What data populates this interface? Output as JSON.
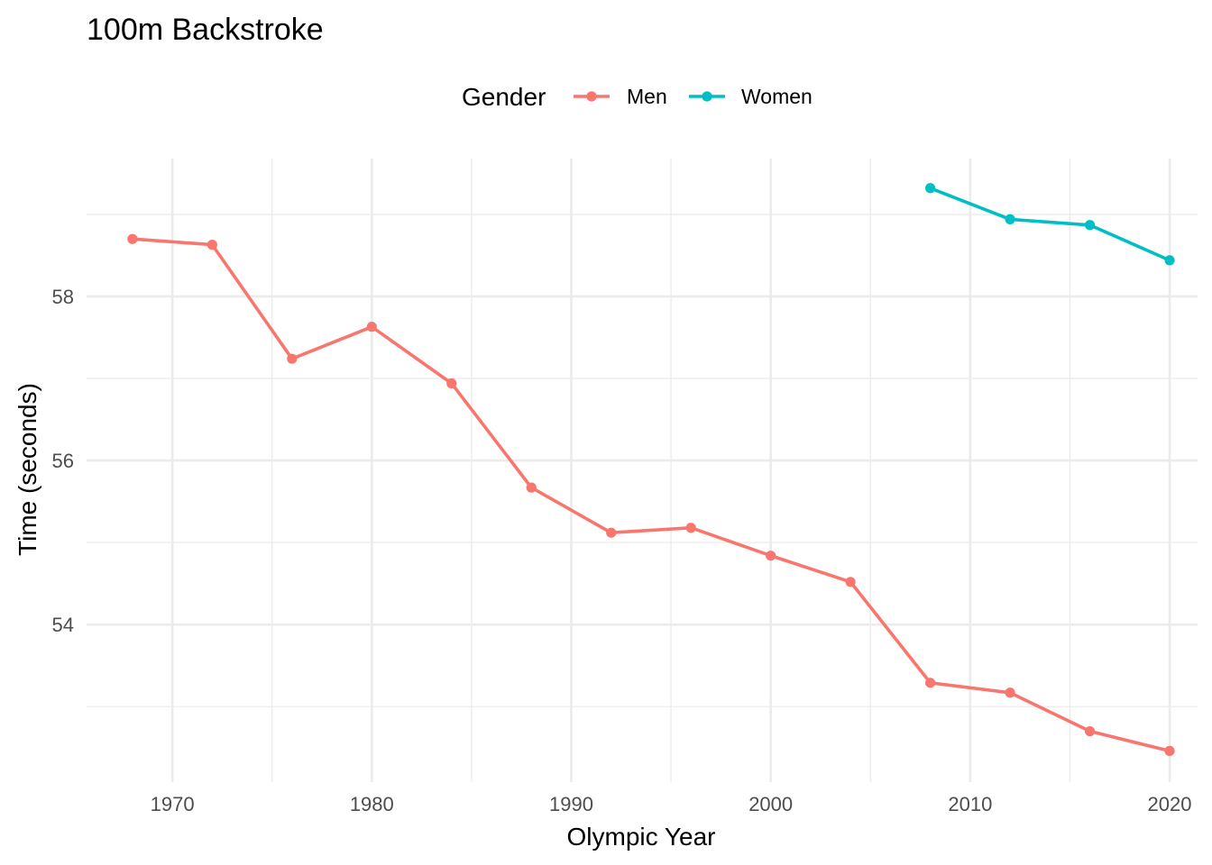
{
  "chart_data": {
    "type": "line",
    "title": "100m Backstroke",
    "xlabel": "Olympic Year",
    "ylabel": "Time (seconds)",
    "legend": {
      "title": "Gender",
      "position": "top"
    },
    "xlim": [
      1965.7,
      2021.4
    ],
    "ylim": [
      52.08,
      59.68
    ],
    "x_ticks": [
      1970,
      1980,
      1990,
      2000,
      2010,
      2020
    ],
    "y_ticks": [
      54,
      56,
      58
    ],
    "grid": true,
    "series": [
      {
        "name": "Men",
        "color": "#F8766D",
        "points": [
          {
            "x": 1968,
            "y": 58.7
          },
          {
            "x": 1972,
            "y": 58.63
          },
          {
            "x": 1976,
            "y": 57.24
          },
          {
            "x": 1980,
            "y": 57.63
          },
          {
            "x": 1984,
            "y": 56.94
          },
          {
            "x": 1988,
            "y": 55.67
          },
          {
            "x": 1992,
            "y": 55.12
          },
          {
            "x": 1996,
            "y": 55.18
          },
          {
            "x": 2000,
            "y": 54.84
          },
          {
            "x": 2004,
            "y": 54.52
          },
          {
            "x": 2008,
            "y": 53.29
          },
          {
            "x": 2012,
            "y": 53.17
          },
          {
            "x": 2016,
            "y": 52.7
          },
          {
            "x": 2020,
            "y": 52.46
          }
        ]
      },
      {
        "name": "Women",
        "color": "#00BFC4",
        "points": [
          {
            "x": 2008,
            "y": 59.32
          },
          {
            "x": 2012,
            "y": 58.94
          },
          {
            "x": 2016,
            "y": 58.87
          },
          {
            "x": 2020,
            "y": 58.44
          }
        ]
      }
    ]
  }
}
